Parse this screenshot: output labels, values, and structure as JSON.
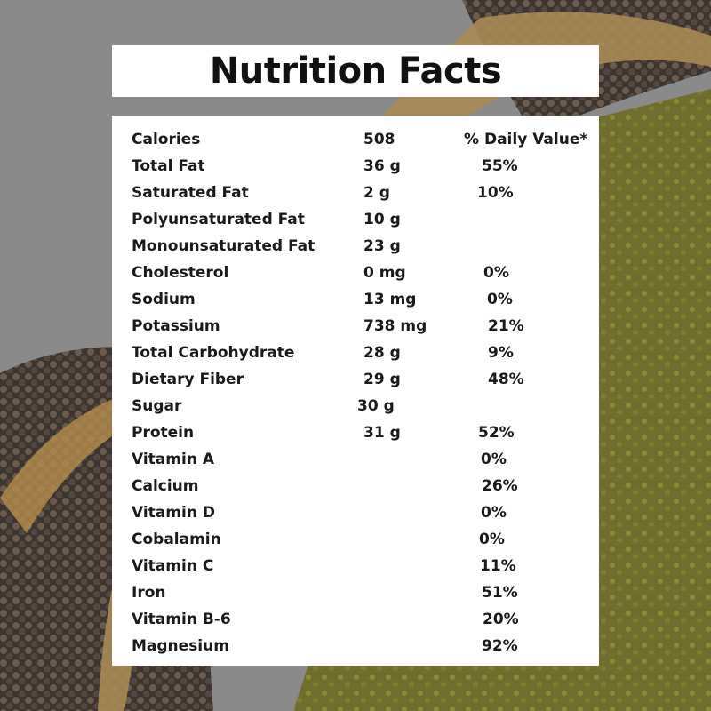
{
  "title": "Nutrition Facts",
  "header": {
    "label": "Calories",
    "amount": "508",
    "dv": "% Daily Value*"
  },
  "rows": [
    {
      "name": "Total Fat",
      "amount": "36 g",
      "dv": "55%"
    },
    {
      "name": "Saturated Fat",
      "amount": "2 g",
      "dv": "10%"
    },
    {
      "name": "Polyunsaturated Fat",
      "amount": "10 g",
      "dv": ""
    },
    {
      "name": "Monounsaturated Fat",
      "amount": "23 g",
      "dv": ""
    },
    {
      "name": "Cholesterol",
      "amount": "0 mg",
      "dv": "0%"
    },
    {
      "name": "Sodium",
      "amount": "13 mg",
      "dv": "0%"
    },
    {
      "name": "Potassium",
      "amount": "738 mg",
      "dv": "21%"
    },
    {
      "name": "Total Carbohydrate",
      "amount": "28 g",
      "dv": "9%"
    },
    {
      "name": "Dietary Fiber",
      "amount": "29 g",
      "dv": "48%"
    },
    {
      "name": "Sugar",
      "amount": "30 g",
      "dv": ""
    },
    {
      "name": "Protein",
      "amount": "31 g",
      "dv": "52%"
    },
    {
      "name": "Vitamin A",
      "amount": "",
      "dv": "0%"
    },
    {
      "name": "Calcium",
      "amount": "",
      "dv": "26%"
    },
    {
      "name": "Vitamin D",
      "amount": "",
      "dv": "0%"
    },
    {
      "name": "Cobalamin",
      "amount": "",
      "dv": "0%"
    },
    {
      "name": "Vitamin C",
      "amount": "",
      "dv": "11%"
    },
    {
      "name": "Iron",
      "amount": "",
      "dv": "51%"
    },
    {
      "name": "Vitamin B-6",
      "amount": "",
      "dv": "20%"
    },
    {
      "name": "Magnesium",
      "amount": "",
      "dv": "92%"
    }
  ]
}
